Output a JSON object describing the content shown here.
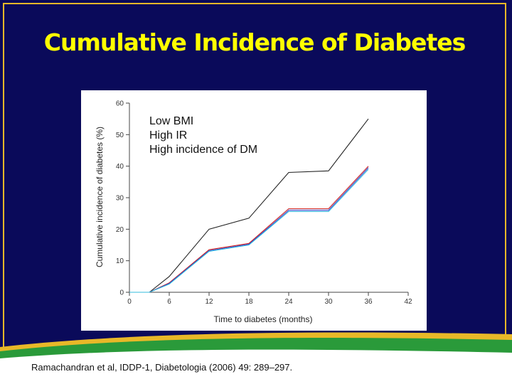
{
  "slide": {
    "title": "Cumulative Incidence of Diabetes",
    "citation": "Ramachandran et al, IDDP-1, Diabetologia (2006) 49: 289–297.",
    "colors": {
      "background": "#0a0a5a",
      "title": "#ffff00",
      "frame": "#e8b828",
      "footer_green": "#2a9a3a"
    }
  },
  "chart_data": {
    "type": "line",
    "title": "",
    "xlabel": "Time to diabetes (months)",
    "ylabel": "Cumulative incidence of diabetes (%)",
    "xlim": [
      0,
      42
    ],
    "ylim": [
      0,
      60
    ],
    "x_ticks": [
      0,
      6,
      12,
      18,
      24,
      30,
      36,
      42
    ],
    "y_ticks": [
      0,
      10,
      20,
      30,
      40,
      50,
      60
    ],
    "annotation": [
      "Low BMI",
      "High IR",
      "High incidence of DM"
    ],
    "series": [
      {
        "name": "black",
        "color": "#222222",
        "x": [
          0,
          3,
          6,
          12,
          18,
          24,
          30,
          36
        ],
        "y": [
          0,
          0,
          5,
          20,
          23.5,
          38,
          38.5,
          55
        ]
      },
      {
        "name": "red",
        "color": "#cc2222",
        "x": [
          0,
          3,
          6,
          12,
          18,
          24,
          30,
          36
        ],
        "y": [
          0,
          0,
          3,
          13.5,
          15.5,
          26.5,
          26.5,
          40
        ]
      },
      {
        "name": "blue",
        "color": "#3344cc",
        "x": [
          0,
          3,
          6,
          12,
          18,
          24,
          30,
          36
        ],
        "y": [
          0,
          0,
          2.8,
          13.2,
          15.2,
          26,
          26,
          39.5
        ]
      },
      {
        "name": "cyan",
        "color": "#33bbdd",
        "x": [
          0,
          3,
          6,
          12,
          18,
          24,
          30,
          36
        ],
        "y": [
          0,
          0,
          2.6,
          13,
          15,
          25.6,
          25.6,
          39
        ]
      }
    ]
  }
}
